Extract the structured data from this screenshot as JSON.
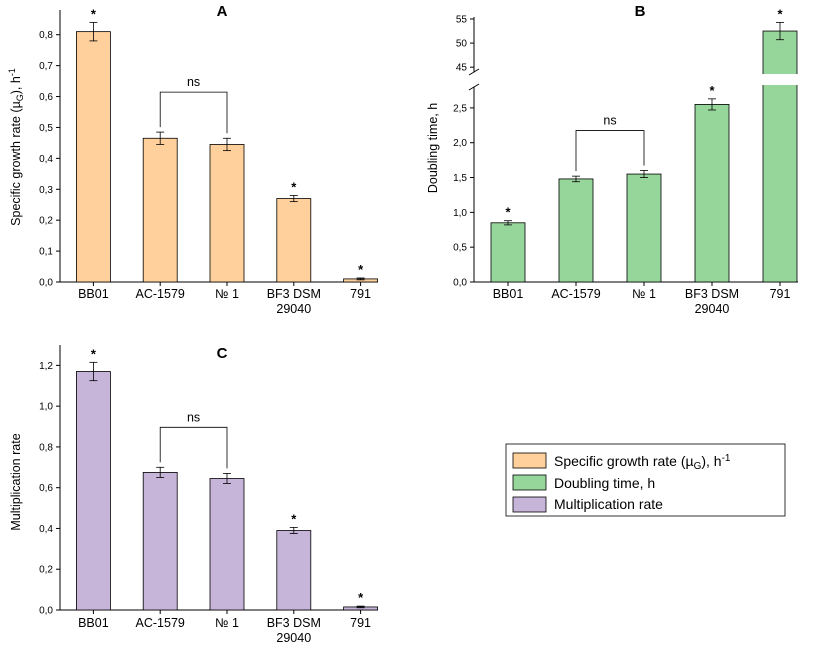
{
  "chart_data": [
    {
      "panel": "A",
      "type": "bar",
      "title": "A",
      "ylabel": "Specific growth rate (µG), h-1",
      "ylabel_parts": {
        "main": "Specific growth rate (µ",
        "sub": "G",
        "mid": "), h",
        "sup": "-1"
      },
      "categories": [
        "BB01",
        "AC-1579",
        "№ 1",
        "BF3 DSM 29040",
        "791"
      ],
      "category_lines": [
        [
          "BB01"
        ],
        [
          "AC-1579"
        ],
        [
          "№ 1"
        ],
        [
          "BF3 DSM",
          "29040"
        ],
        [
          "791"
        ]
      ],
      "values": [
        0.81,
        0.465,
        0.445,
        0.27,
        0.01
      ],
      "errors": [
        0.03,
        0.02,
        0.02,
        0.01,
        0.003
      ],
      "significance": [
        "*",
        "",
        "",
        "*",
        "*"
      ],
      "bracket": {
        "from": 1,
        "to": 2,
        "label": "ns"
      },
      "ylim": [
        0,
        0.88
      ],
      "yticks": [
        0.0,
        0.1,
        0.2,
        0.3,
        0.4,
        0.5,
        0.6,
        0.7,
        0.8
      ],
      "ytick_labels": [
        "0,0",
        "0,1",
        "0,2",
        "0,3",
        "0,4",
        "0,5",
        "0,6",
        "0,7",
        "0,8"
      ],
      "color": "#FFD09B"
    },
    {
      "panel": "B",
      "type": "bar",
      "title": "B",
      "ylabel": "Doubling time, h",
      "categories": [
        "BB01",
        "AC-1579",
        "№ 1",
        "BF3 DSM 29040",
        "791"
      ],
      "category_lines": [
        [
          "BB01"
        ],
        [
          "AC-1579"
        ],
        [
          "№ 1"
        ],
        [
          "BF3 DSM",
          "29040"
        ],
        [
          "791"
        ]
      ],
      "values": [
        0.85,
        1.48,
        1.55,
        2.55,
        52.5
      ],
      "errors": [
        0.03,
        0.04,
        0.05,
        0.08,
        1.8
      ],
      "significance": [
        "*",
        "",
        "",
        "*",
        "*"
      ],
      "bracket": {
        "from": 1,
        "to": 2,
        "label": "ns"
      },
      "axis_break": {
        "lower_range": [
          0,
          2.8
        ],
        "upper_range": [
          44,
          55
        ]
      },
      "yticks_lower": [
        0.0,
        0.5,
        1.0,
        1.5,
        2.0,
        2.5
      ],
      "ytick_labels_lower": [
        "0,0",
        "0,5",
        "1,0",
        "1,5",
        "2,0",
        "2,5"
      ],
      "yticks_upper": [
        45,
        50,
        55
      ],
      "ytick_labels_upper": [
        "45",
        "50",
        "55"
      ],
      "color": "#97D69B"
    },
    {
      "panel": "C",
      "type": "bar",
      "title": "C",
      "ylabel": "Multiplication rate",
      "categories": [
        "BB01",
        "AC-1579",
        "№ 1",
        "BF3 DSM 29040",
        "791"
      ],
      "category_lines": [
        [
          "BB01"
        ],
        [
          "AC-1579"
        ],
        [
          "№ 1"
        ],
        [
          "BF3 DSM",
          "29040"
        ],
        [
          "791"
        ]
      ],
      "values": [
        1.17,
        0.675,
        0.645,
        0.39,
        0.015
      ],
      "errors": [
        0.045,
        0.025,
        0.025,
        0.015,
        0.004
      ],
      "significance": [
        "*",
        "",
        "",
        "*",
        "*"
      ],
      "bracket": {
        "from": 1,
        "to": 2,
        "label": "ns"
      },
      "ylim": [
        0,
        1.3
      ],
      "yticks": [
        0.0,
        0.2,
        0.4,
        0.6,
        0.8,
        1.0,
        1.2
      ],
      "ytick_labels": [
        "0,0",
        "0,2",
        "0,4",
        "0,6",
        "0,8",
        "1,0",
        "1,2"
      ],
      "color": "#C6B4D9"
    }
  ],
  "legend": [
    {
      "label": "Specific growth rate (µG), h-1",
      "parts": {
        "main": "Specific growth rate (µ",
        "sub": "G",
        "mid": "), h",
        "sup": "-1"
      },
      "color": "#FFD09B"
    },
    {
      "label": "Doubling time, h",
      "color": "#97D69B"
    },
    {
      "label": "Multiplication rate",
      "color": "#C6B4D9"
    }
  ]
}
